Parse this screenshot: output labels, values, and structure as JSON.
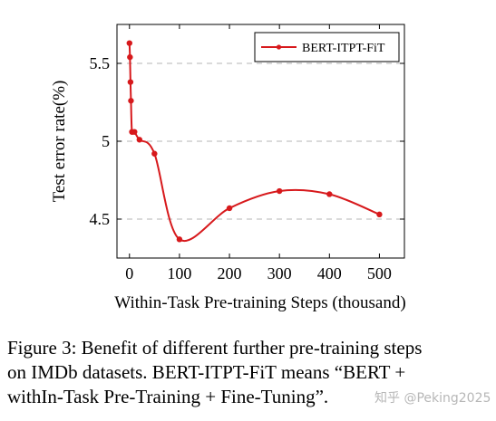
{
  "chart_data": {
    "type": "line",
    "title": "",
    "xlabel": "Within-Task Pre-training Steps (thousand)",
    "ylabel": "Test error rate(%)",
    "xlim": [
      -25,
      550
    ],
    "ylim": [
      4.25,
      5.75
    ],
    "xticks": [
      0,
      100,
      200,
      300,
      400,
      500
    ],
    "yticks": [
      4.5,
      5,
      5.5
    ],
    "ytick_labels": [
      "4.5",
      "5",
      "5.5"
    ],
    "grid": "horizontal-dashed",
    "legend_position": "top-right",
    "series": [
      {
        "name": "BERT-ITPT-FiT",
        "color": "#d7191c",
        "smooth": true,
        "marker": "circle",
        "x": [
          0,
          1,
          2,
          3,
          5,
          10,
          20,
          50,
          100,
          200,
          300,
          400,
          500
        ],
        "y": [
          5.63,
          5.54,
          5.38,
          5.26,
          5.06,
          5.06,
          5.01,
          4.92,
          4.37,
          4.57,
          4.68,
          4.66,
          4.53
        ]
      }
    ]
  },
  "caption": {
    "lines": [
      "Figure 3: Benefit of different further pre-training steps",
      "on IMDb datasets.  BERT-ITPT-FiT means “BERT +",
      "withIn-Task Pre-Training + Fine-Tuning”."
    ]
  },
  "watermark": "知乎 @Peking2025"
}
